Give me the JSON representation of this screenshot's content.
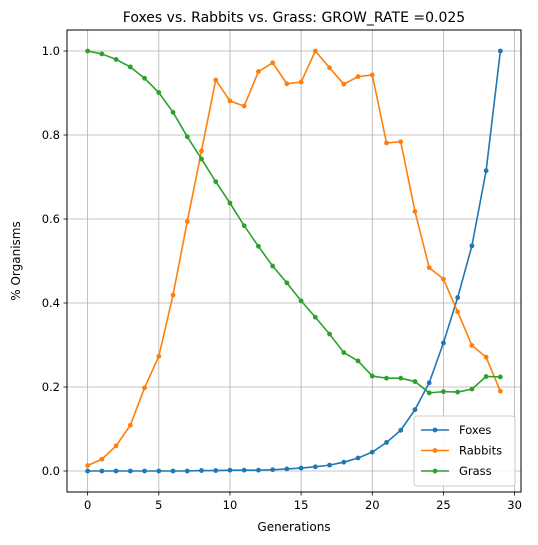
{
  "chart_data": {
    "type": "line",
    "title": "Foxes vs. Rabbits vs. Grass: GROW_RATE =0.025",
    "xlabel": "Generations",
    "ylabel": "% Organisms",
    "xlim": [
      -1.45,
      30.45
    ],
    "ylim": [
      -0.05,
      1.05
    ],
    "xticks": [
      0,
      5,
      10,
      15,
      20,
      25,
      30
    ],
    "yticks": [
      0.0,
      0.2,
      0.4,
      0.6,
      0.8,
      1.0
    ],
    "xtick_labels": [
      "0",
      "5",
      "10",
      "15",
      "20",
      "25",
      "30"
    ],
    "ytick_labels": [
      "0.0",
      "0.2",
      "0.4",
      "0.6",
      "0.8",
      "1.0"
    ],
    "grid": true,
    "legend_position": "lower-right",
    "x": [
      0,
      1,
      2,
      3,
      4,
      5,
      6,
      7,
      8,
      9,
      10,
      11,
      12,
      13,
      14,
      15,
      16,
      17,
      18,
      19,
      20,
      21,
      22,
      23,
      24,
      25,
      26,
      27,
      28,
      29
    ],
    "series": [
      {
        "name": "Foxes",
        "color": "#1f77b4",
        "values": [
          0.0,
          0.0,
          0.0,
          0.0,
          0.0,
          0.0,
          0.0,
          0.0,
          0.001,
          0.001,
          0.002,
          0.002,
          0.002,
          0.003,
          0.005,
          0.007,
          0.01,
          0.014,
          0.021,
          0.031,
          0.045,
          0.068,
          0.097,
          0.146,
          0.21,
          0.305,
          0.413,
          0.536,
          0.715,
          1.0
        ]
      },
      {
        "name": "Rabbits",
        "color": "#ff7f0e",
        "values": [
          0.013,
          0.028,
          0.06,
          0.109,
          0.198,
          0.273,
          0.419,
          0.594,
          0.762,
          0.931,
          0.881,
          0.869,
          0.951,
          0.972,
          0.922,
          0.926,
          1.0,
          0.96,
          0.921,
          0.939,
          0.943,
          0.781,
          0.784,
          0.618,
          0.484,
          0.457,
          0.379,
          0.299,
          0.271,
          0.19
        ]
      },
      {
        "name": "Grass",
        "color": "#2ca02c",
        "values": [
          1.0,
          0.993,
          0.98,
          0.962,
          0.935,
          0.901,
          0.854,
          0.796,
          0.743,
          0.689,
          0.638,
          0.584,
          0.535,
          0.488,
          0.448,
          0.405,
          0.366,
          0.326,
          0.282,
          0.262,
          0.226,
          0.221,
          0.221,
          0.213,
          0.186,
          0.189,
          0.188,
          0.195,
          0.225,
          0.224
        ]
      }
    ]
  }
}
